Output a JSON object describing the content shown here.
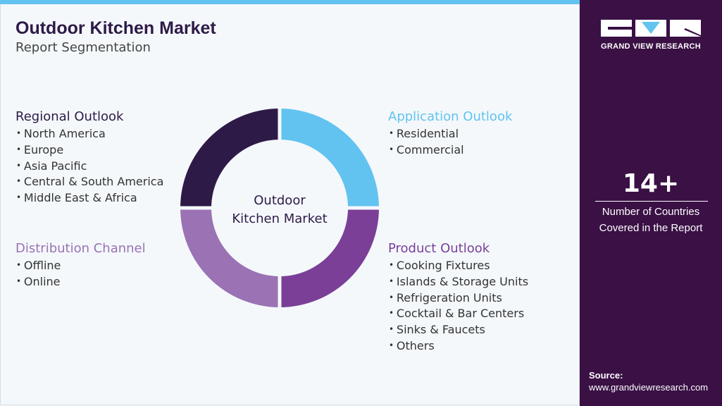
{
  "header": {
    "title": "Outdoor Kitchen Market",
    "subtitle": "Report Segmentation"
  },
  "center_label": [
    "Outdoor",
    "Kitchen Market"
  ],
  "segments": [
    {
      "title": "Regional Outlook",
      "color": "#2e1a47",
      "items": [
        "North America",
        "Europe",
        "Asia Pacific",
        "Central & South America",
        "Middle East & Africa"
      ]
    },
    {
      "title": "Application Outlook",
      "color": "#62c3f0",
      "items": [
        "Residential",
        "Commercial"
      ]
    },
    {
      "title": "Distribution Channel",
      "color": "#9b72b3",
      "items": [
        "Offline",
        "Online"
      ]
    },
    {
      "title": "Product Outlook",
      "color": "#7b3f98",
      "items": [
        "Cooking Fixtures",
        "Islands & Storage Units",
        "Refrigeration Units",
        "Cocktail & Bar Centers",
        "Sinks & Faucets",
        "Others"
      ]
    }
  ],
  "sidebar": {
    "logo": "GRAND VIEW RESEARCH",
    "stat": "14+",
    "stat_caption": [
      "Number of Countries",
      "Covered in the Report"
    ],
    "source_label": "Source:",
    "source_url": "www.grandviewresearch.com"
  }
}
